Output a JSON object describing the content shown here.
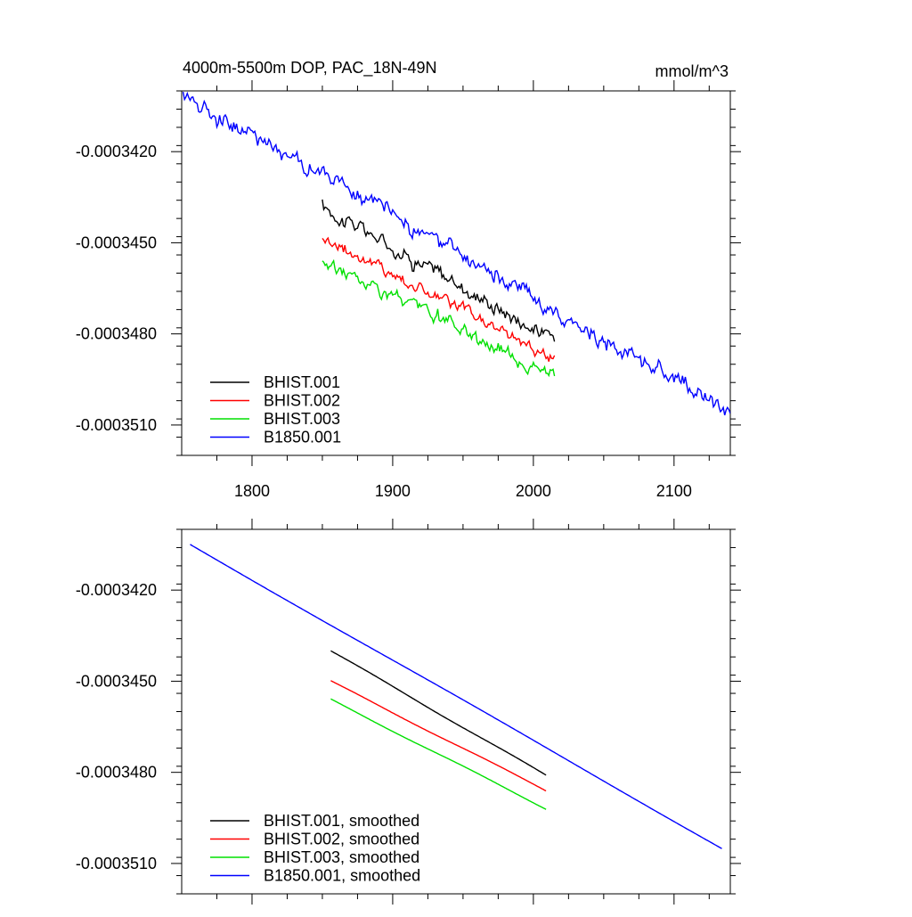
{
  "figure": {
    "title": "4000m-5500m DOP, PAC_18N-49N",
    "units": "mmol/m^3"
  },
  "chart_data": [
    {
      "type": "line",
      "title": "4000m-5500m DOP, PAC_18N-49N",
      "units_label": "mmol/m^3",
      "xlabel": "",
      "ylabel": "",
      "xlim": [
        1750,
        2140
      ],
      "ylim": [
        -0.000352,
        -0.00034
      ],
      "x_ticks": [
        1800,
        1900,
        2000,
        2100
      ],
      "x_tick_labels": [
        "1800",
        "1900",
        "2000",
        "2100"
      ],
      "y_ticks": [
        -0.000342,
        -0.000345,
        -0.000348,
        -0.000351
      ],
      "y_tick_labels": [
        "-0.0003420",
        "-0.0003450",
        "-0.0003480",
        "-0.0003510"
      ],
      "legend_position": "bottom-left",
      "series": [
        {
          "name": "BHIST.001",
          "color": "#000000",
          "start": 1850,
          "end": 2015,
          "y_start": -0.0003438,
          "y_end": -0.0003482,
          "noise": 3.5e-07
        },
        {
          "name": "BHIST.002",
          "color": "#ff0000",
          "start": 1850,
          "end": 2015,
          "y_start": -0.0003448,
          "y_end": -0.0003488,
          "noise": 3e-07
        },
        {
          "name": "BHIST.003",
          "color": "#00e000",
          "start": 1850,
          "end": 2015,
          "y_start": -0.0003456,
          "y_end": -0.0003494,
          "noise": 3e-07
        },
        {
          "name": "B1850.001",
          "color": "#0000ff",
          "start": 1751,
          "end": 2140,
          "y_start": -0.0003401,
          "y_end": -0.0003506,
          "noise": 3.5e-07
        }
      ]
    },
    {
      "type": "line",
      "title": "",
      "xlabel": "",
      "ylabel": "",
      "xlim": [
        1750,
        2140
      ],
      "ylim": [
        -0.000352,
        -0.00034
      ],
      "x_ticks": [
        1800,
        1900,
        2000,
        2100
      ],
      "x_tick_labels": [],
      "y_ticks": [
        -0.000342,
        -0.000345,
        -0.000348,
        -0.000351
      ],
      "y_tick_labels": [
        "-0.0003420",
        "-0.0003450",
        "-0.0003480",
        "-0.0003510"
      ],
      "legend_position": "bottom-left",
      "series": [
        {
          "name": "BHIST.001, smoothed",
          "color": "#000000",
          "start": 1856,
          "end": 2009,
          "y_start": -0.000344,
          "y_end": -0.0003481,
          "noise": 0
        },
        {
          "name": "BHIST.002, smoothed",
          "color": "#ff0000",
          "start": 1856,
          "end": 2009,
          "y_start": -0.000345,
          "y_end": -0.0003486,
          "noise": 0
        },
        {
          "name": "BHIST.003, smoothed",
          "color": "#00e000",
          "start": 1856,
          "end": 2009,
          "y_start": -0.0003456,
          "y_end": -0.0003492,
          "noise": 0
        },
        {
          "name": "B1850.001, smoothed",
          "color": "#0000ff",
          "start": 1756,
          "end": 2134,
          "y_start": -0.0003405,
          "y_end": -0.0003505,
          "noise": 0
        }
      ]
    }
  ]
}
